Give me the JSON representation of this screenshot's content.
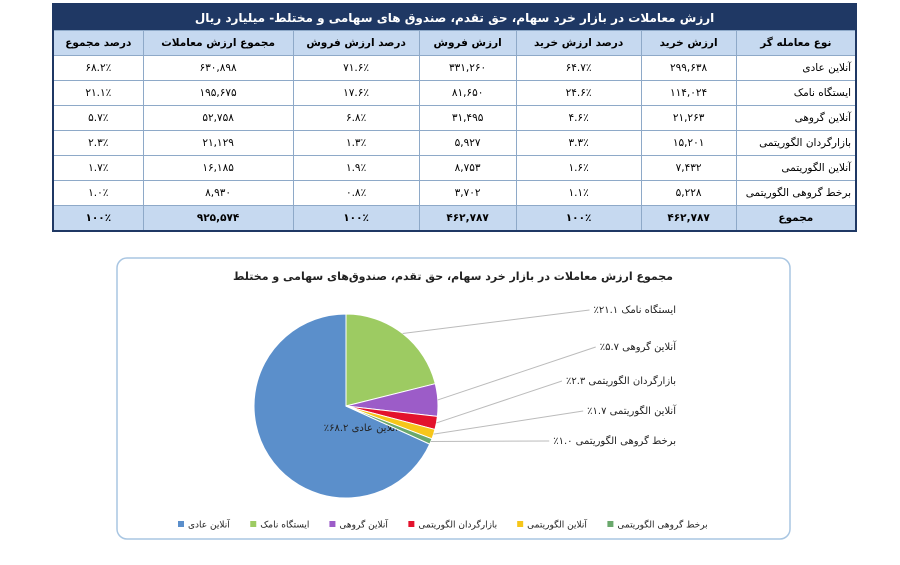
{
  "table": {
    "title": "ارزش معاملات در بازار خرد سهام، حق تقدم، صندوق های سهامی و مختلط- میلیارد ریال",
    "headers": [
      "نوع معامله گر",
      "ارزش خرید",
      "درصد ارزش خرید",
      "ارزش فروش",
      "درصد ارزش فروش",
      "مجموع ارزش معاملات",
      "درصد مجموع"
    ],
    "rows": [
      [
        "آنلاین عادی",
        "۲۹۹,۶۳۸",
        "۶۴.۷٪",
        "۳۳۱,۲۶۰",
        "۷۱.۶٪",
        "۶۳۰,۸۹۸",
        "۶۸.۲٪"
      ],
      [
        "ایستگاه نامک",
        "۱۱۴,۰۲۴",
        "۲۴.۶٪",
        "۸۱,۶۵۰",
        "۱۷.۶٪",
        "۱۹۵,۶۷۵",
        "۲۱.۱٪"
      ],
      [
        "آنلاین گروهی",
        "۲۱,۲۶۳",
        "۴.۶٪",
        "۳۱,۴۹۵",
        "۶.۸٪",
        "۵۲,۷۵۸",
        "۵.۷٪"
      ],
      [
        "بازارگردان الگوریتمی",
        "۱۵,۲۰۱",
        "۳.۳٪",
        "۵,۹۲۷",
        "۱.۳٪",
        "۲۱,۱۲۹",
        "۲.۳٪"
      ],
      [
        "آنلاین الگوریتمی",
        "۷,۴۳۲",
        "۱.۶٪",
        "۸,۷۵۳",
        "۱.۹٪",
        "۱۶,۱۸۵",
        "۱.۷٪"
      ],
      [
        "برخط گروهی الگوریتمی",
        "۵,۲۲۸",
        "۱.۱٪",
        "۳,۷۰۲",
        "۰.۸٪",
        "۸,۹۳۰",
        "۱.۰٪"
      ]
    ],
    "total": [
      "مجموع",
      "۴۶۲,۷۸۷",
      "۱۰۰٪",
      "۴۶۲,۷۸۷",
      "۱۰۰٪",
      "۹۲۵,۵۷۴",
      "۱۰۰٪"
    ]
  },
  "chart_data": {
    "type": "pie",
    "title": "مجموع ارزش معاملات در بازار خرد سهام، حق تقدم، صندوق‌های سهامی و مختلط",
    "categories": [
      "آنلاین عادی",
      "ایستگاه نامک",
      "آنلاین گروهی",
      "بازارگردان الگوریتمی",
      "آنلاین الگوریتمی",
      "برخط گروهی الگوریتمی"
    ],
    "values": [
      68.2,
      21.1,
      5.7,
      2.3,
      1.7,
      1.0
    ],
    "value_labels": [
      "آنلاین عادی ۶۸.۲٪",
      "ایستگاه نامک ۲۱.۱٪",
      "آنلاین گروهی ۵.۷٪",
      "بازارگردان الگوریتمی ۲.۳٪",
      "آنلاین الگوریتمی ۱.۷٪",
      "برخط گروهی الگوریتمی ۱.۰٪"
    ],
    "colors": [
      "#5b8fcb",
      "#9dcb62",
      "#9c5cc8",
      "#e3122c",
      "#f6c61a",
      "#6aa86c"
    ]
  }
}
